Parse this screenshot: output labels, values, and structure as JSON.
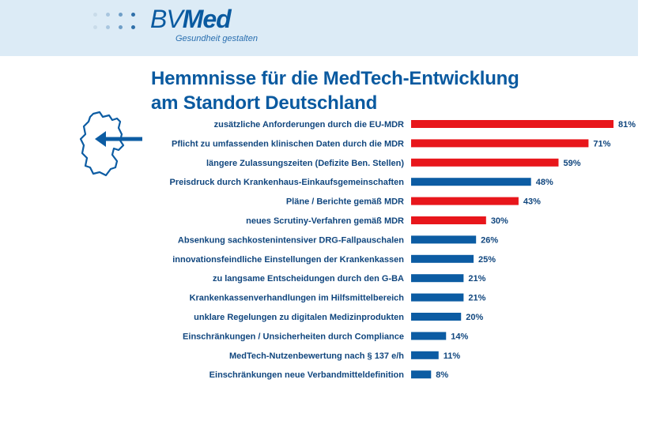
{
  "header": {
    "logo_bv": "BV",
    "logo_med": "Med",
    "tagline": "Gesundheit gestalten"
  },
  "title_lines": [
    "Hemmnisse für die MedTech-Entwicklung",
    "am Standort Deutschland"
  ],
  "colors": {
    "highlight": "#e8161b",
    "normal": "#0c5ca3",
    "header_bg": "#dcebf6",
    "label": "#10467e"
  },
  "icons": {
    "map": "germany-outline-icon",
    "arrow": "arrow-left-icon"
  },
  "chart_data": {
    "type": "bar",
    "orientation": "horizontal",
    "title": "Hemmnisse für die MedTech-Entwicklung am Standort Deutschland",
    "xlim": [
      0,
      81
    ],
    "categories": [
      "zusätzliche Anforderungen durch die EU-MDR",
      "Pflicht zu umfassenden klinischen Daten durch die MDR",
      "längere Zulassungszeiten (Defizite Ben. Stellen)",
      "Preisdruck durch Krankenhaus-Einkaufsgemeinschaften",
      "Pläne / Berichte gemäß MDR",
      "neues Scrutiny-Verfahren gemäß MDR",
      "Absenkung sachkostenintensiver DRG-Fallpauschalen",
      "innovationsfeindliche Einstellungen der Krankenkassen",
      "zu langsame Entscheidungen durch den G-BA",
      "Krankenkassenverhandlungen im Hilfsmittelbereich",
      "unklare Regelungen zu digitalen Medizinprodukten",
      "Einschränkungen / Unsicherheiten durch Compliance",
      "MedTech-Nutzenbewertung nach § 137 e/h",
      "Einschränkungen neue Verbandmitteldefinition"
    ],
    "values": [
      81,
      71,
      59,
      48,
      43,
      30,
      26,
      25,
      21,
      21,
      20,
      14,
      11,
      8
    ],
    "value_labels": [
      "81%",
      "71%",
      "59%",
      "48%",
      "43%",
      "30%",
      "26%",
      "25%",
      "21%",
      "21%",
      "20%",
      "14%",
      "11%",
      "8%"
    ],
    "highlighted": [
      true,
      true,
      true,
      false,
      true,
      true,
      false,
      false,
      false,
      false,
      false,
      false,
      false,
      false
    ],
    "grid": false,
    "legend": "none"
  }
}
